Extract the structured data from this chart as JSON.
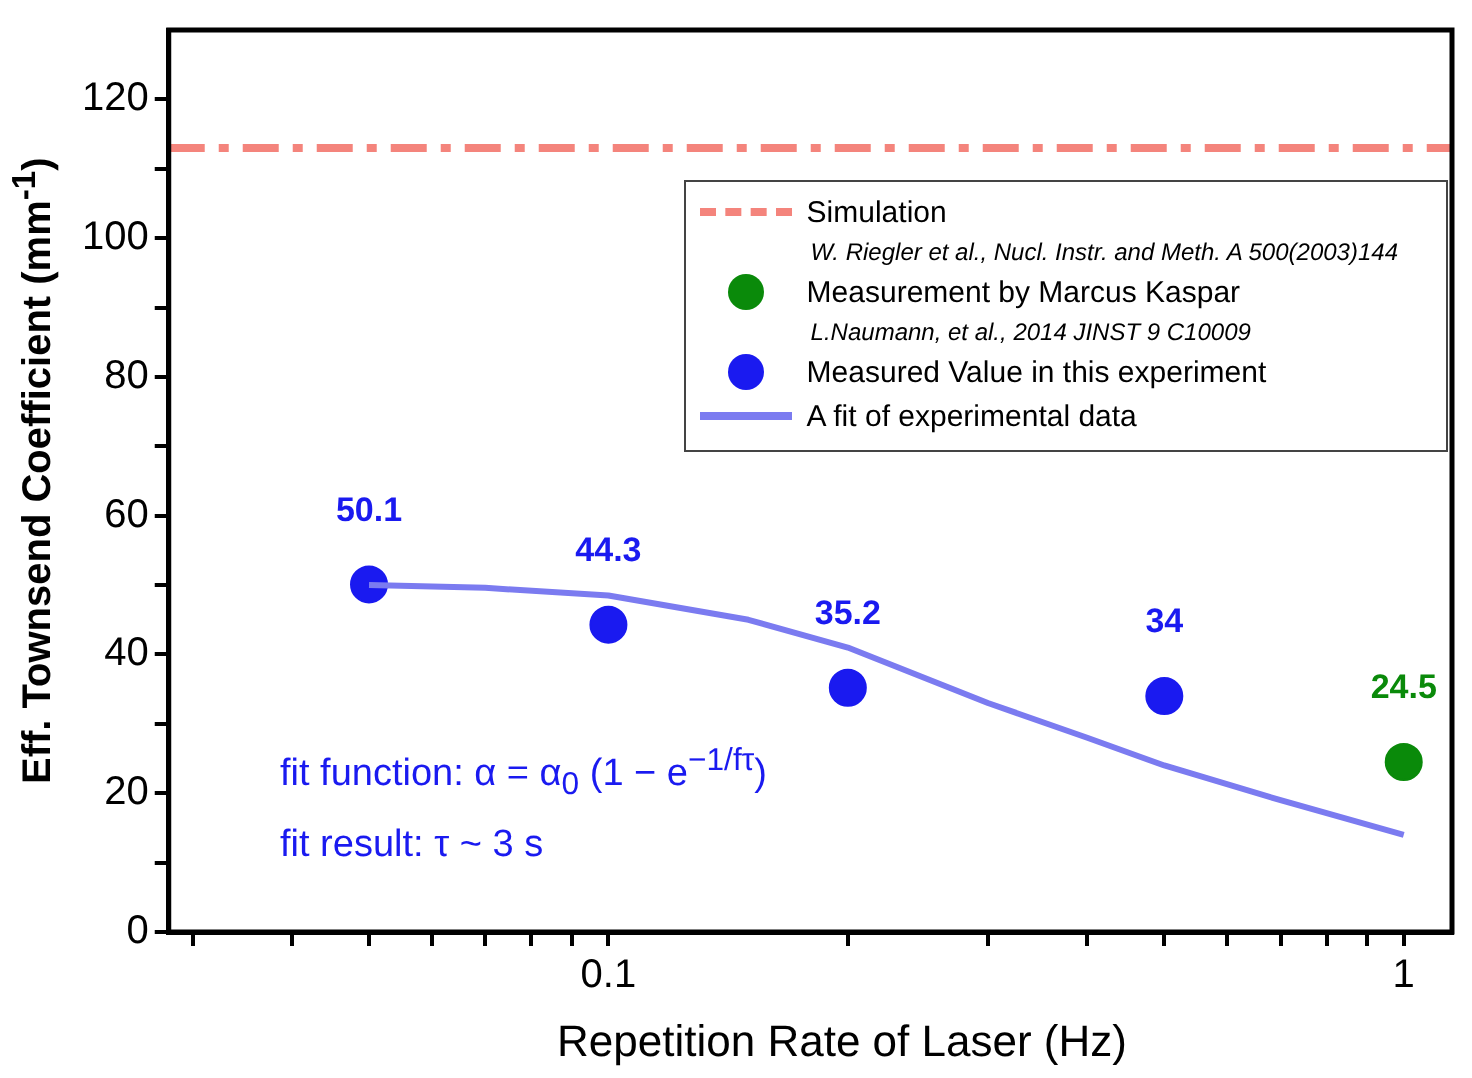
{
  "chart_data": {
    "type": "scatter",
    "xlabel": "Repetition Rate of Laser (Hz)",
    "ylabel": "Eff. Townsend Coefficient (mm$^{-1}$)",
    "log": "x",
    "grid": false,
    "legend": "top right",
    "marker": "circle",
    "xlim": [
      0.028,
      1.15
    ],
    "xticks": [
      {
        "value": 0.03,
        "label": null
      },
      {
        "value": 0.04,
        "label": null
      },
      {
        "value": 0.05,
        "label": null
      },
      {
        "value": 0.06,
        "label": null
      },
      {
        "value": 0.07,
        "label": null
      },
      {
        "value": 0.08,
        "label": null
      },
      {
        "value": 0.09,
        "label": null
      },
      0.1,
      {
        "value": 0.2,
        "label": null
      },
      {
        "value": 0.3,
        "label": null
      },
      {
        "value": 0.4,
        "label": null
      },
      {
        "value": 0.5,
        "label": null
      },
      {
        "value": 0.6,
        "label": null
      },
      {
        "value": 0.7,
        "label": null
      },
      {
        "value": 0.8,
        "label": null
      },
      {
        "value": 0.9,
        "label": null
      },
      1
    ],
    "ylim": [
      0,
      130
    ],
    "yticks": [
      0,
      {
        "value": 10,
        "label": null
      },
      20,
      {
        "value": 30,
        "label": null
      },
      40,
      {
        "value": 50,
        "label": null
      },
      60,
      {
        "value": 70,
        "label": null
      },
      80,
      {
        "value": 90,
        "label": null
      },
      100,
      {
        "value": 110,
        "label": null
      },
      120
    ],
    "ref_lines": [
      {
        "axis": "y",
        "value": 113,
        "label": "Simulation",
        "color": "#f4847c",
        "line_style": "dashdot"
      }
    ],
    "series": [
      {
        "name": "Measurement by Marcus Kaspar",
        "color": "#0a8a0a",
        "x": [
          1
        ],
        "values": [
          24.5
        ],
        "value_labels": [
          "24.5"
        ]
      },
      {
        "name": "Measured Value in this experiment",
        "color": "#1a1af0",
        "x": [
          0.05,
          0.1,
          0.2,
          0.5
        ],
        "values": [
          50.1,
          44.3,
          35.2,
          34
        ],
        "value_labels": [
          "50.1",
          "44.3",
          "35.2",
          "34"
        ]
      },
      {
        "name": "A fit of experimental data",
        "type": "line",
        "color": "#7b7bf0",
        "marker": "none",
        "x": [
          0.05,
          0.07,
          0.1,
          0.15,
          0.2,
          0.3,
          0.4,
          0.5,
          0.7,
          1
        ],
        "values": [
          50,
          49.6,
          48.5,
          45,
          41,
          33,
          28,
          24,
          19,
          14
        ]
      }
    ],
    "annotations": [
      "W. Riegler et al., Nucl. Instr. and Meth. A 500(2003)144",
      "L.Naumann, et al., 2014 JINST 9 C10009",
      "fit function:  α = α$_{0}$ (1 − e$^{−1/fτ}$)",
      "fit result: τ ~ 3 s"
    ]
  }
}
